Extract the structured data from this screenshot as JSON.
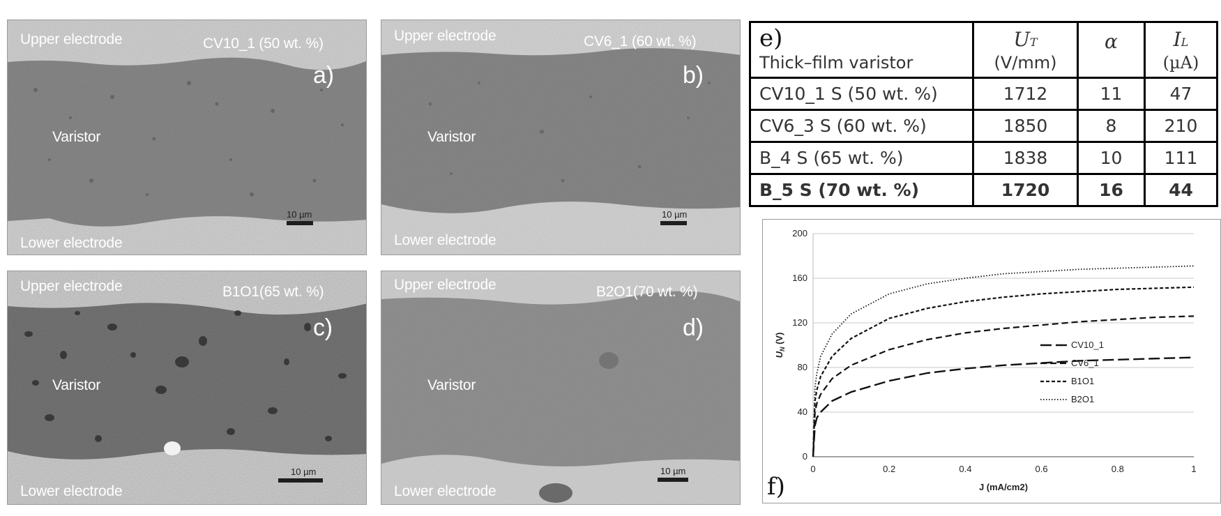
{
  "sem_panels": [
    {
      "id": "a",
      "upper": "Upper electrode",
      "sample": "CV10_1 (50 wt. %)",
      "letter": "a)",
      "middle": "Varistor",
      "lower": "Lower electrode",
      "scale": "10 µm"
    },
    {
      "id": "b",
      "upper": "Upper electrode",
      "sample": "CV6_1 (60 wt. %)",
      "letter": "b)",
      "middle": "Varistor",
      "lower": "Lower electrode",
      "scale": "10 µm"
    },
    {
      "id": "c",
      "upper": "Upper electrode",
      "sample": "B1O1(65 wt. %)",
      "letter": "c)",
      "middle": "Varistor",
      "lower": "Lower electrode",
      "scale": "10 µm"
    },
    {
      "id": "d",
      "upper": "Upper electrode",
      "sample": "B2O1(70 wt. %)",
      "letter": "d)",
      "middle": "Varistor",
      "lower": "Lower electrode",
      "scale": "10 µm"
    }
  ],
  "table": {
    "panel_label": "e)",
    "header": {
      "col1": "Thick–film varistor",
      "ut_symbol": "U",
      "ut_sub": "T",
      "ut_unit": "(V/mm)",
      "alpha": "α",
      "il_symbol": "I",
      "il_sub": "L",
      "il_unit": "(µA)"
    },
    "rows": [
      {
        "name": "CV10_1 S (50 wt. %)",
        "ut": "1712",
        "alpha": "11",
        "il": "47",
        "bold": false
      },
      {
        "name": "CV6_3 S (60 wt. %)",
        "ut": "1850",
        "alpha": "8",
        "il": "210",
        "bold": false
      },
      {
        "name": "B_4 S (65 wt. %)",
        "ut": "1838",
        "alpha": "10",
        "il": "111",
        "bold": false
      },
      {
        "name": "B_5 S (70 wt. %)",
        "ut": "1720",
        "alpha": "16",
        "il": "44",
        "bold": true
      }
    ]
  },
  "chart_data": {
    "type": "line",
    "panel_label": "f)",
    "xlabel": "J (mA/cm2)",
    "ylabel": "U",
    "ylabel_sub": "N",
    "ylabel_unit": "(V)",
    "xlim": [
      0,
      1
    ],
    "ylim": [
      0,
      200
    ],
    "xticks": [
      "0",
      "0.2",
      "0.4",
      "0.6",
      "0.8",
      "1"
    ],
    "yticks": [
      "0",
      "40",
      "80",
      "120",
      "160",
      "200"
    ],
    "grid": "horizontal",
    "legend_position": "bottom-right",
    "x": [
      0,
      0.005,
      0.01,
      0.02,
      0.05,
      0.1,
      0.2,
      0.3,
      0.4,
      0.5,
      0.6,
      0.7,
      0.8,
      0.9,
      1.0
    ],
    "series": [
      {
        "name": "CV10_1",
        "style": "long-dash",
        "values": [
          0,
          28,
          35,
          40,
          50,
          58,
          68,
          75,
          79,
          82,
          84,
          86,
          87,
          88,
          89
        ]
      },
      {
        "name": "CV6_1",
        "style": "dash",
        "values": [
          0,
          40,
          48,
          56,
          70,
          82,
          96,
          105,
          111,
          115,
          118,
          121,
          123,
          125,
          126
        ]
      },
      {
        "name": "B1O1",
        "style": "short-dash",
        "values": [
          0,
          50,
          60,
          72,
          90,
          106,
          124,
          133,
          139,
          143,
          146,
          148,
          150,
          151,
          152
        ]
      },
      {
        "name": "B2O1",
        "style": "dotted",
        "values": [
          0,
          62,
          75,
          90,
          110,
          128,
          146,
          155,
          160,
          164,
          166,
          168,
          169,
          170,
          171
        ]
      }
    ]
  }
}
